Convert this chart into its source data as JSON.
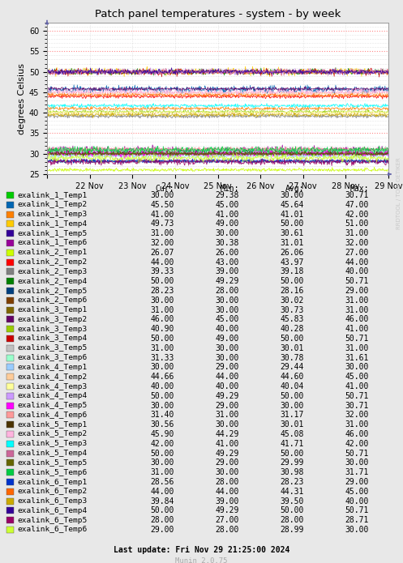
{
  "title": "Patch panel temperatures - system - by week",
  "ylabel": "degrees Celsius",
  "watermark": "RRDTOOL / TOBI OETIKER",
  "footer": "Last update: Fri Nov 29 21:25:00 2024",
  "munin_version": "Munin 2.0.75",
  "ylim": [
    25,
    62
  ],
  "yticks": [
    25,
    30,
    35,
    40,
    45,
    50,
    55,
    60
  ],
  "xstart": 0,
  "xend": 8,
  "xtick_labels": [
    "",
    "22 Nov",
    "23 Nov",
    "24 Nov",
    "25 Nov",
    "26 Nov",
    "27 Nov",
    "28 Nov",
    "29 Nov"
  ],
  "bg_color": "#e8e8e8",
  "plot_bg_color": "#ffffff",
  "series": [
    {
      "label": "exalink_1_Temp1",
      "color": "#00cc00",
      "avg": 30.0,
      "cur": 30.0,
      "min": 29.38,
      "max": 30.71
    },
    {
      "label": "exalink_1_Temp2",
      "color": "#0066b3",
      "avg": 45.64,
      "cur": 45.5,
      "min": 45.0,
      "max": 47.0
    },
    {
      "label": "exalink_1_Temp3",
      "color": "#ff8000",
      "avg": 41.01,
      "cur": 41.0,
      "min": 41.0,
      "max": 42.0
    },
    {
      "label": "exalink_1_Temp4",
      "color": "#ffcc00",
      "avg": 50.0,
      "cur": 49.73,
      "min": 49.0,
      "max": 51.0
    },
    {
      "label": "exalink_1_Temp5",
      "color": "#330099",
      "avg": 30.61,
      "cur": 31.0,
      "min": 30.0,
      "max": 31.0
    },
    {
      "label": "exalink_1_Temp6",
      "color": "#990099",
      "avg": 31.01,
      "cur": 32.0,
      "min": 30.38,
      "max": 32.0
    },
    {
      "label": "exalink_2_Temp1",
      "color": "#ccff00",
      "avg": 26.06,
      "cur": 26.07,
      "min": 26.0,
      "max": 27.0
    },
    {
      "label": "exalink_2_Temp2",
      "color": "#ff0000",
      "avg": 43.97,
      "cur": 44.0,
      "min": 43.0,
      "max": 44.0
    },
    {
      "label": "exalink_2_Temp3",
      "color": "#808080",
      "avg": 39.18,
      "cur": 39.33,
      "min": 39.0,
      "max": 40.0
    },
    {
      "label": "exalink_2_Temp4",
      "color": "#008000",
      "avg": 50.0,
      "cur": 50.0,
      "min": 49.29,
      "max": 50.71
    },
    {
      "label": "exalink_2_Temp5",
      "color": "#003f7f",
      "avg": 28.16,
      "cur": 28.23,
      "min": 28.0,
      "max": 29.0
    },
    {
      "label": "exalink_2_Temp6",
      "color": "#7f3f00",
      "avg": 30.02,
      "cur": 30.0,
      "min": 30.0,
      "max": 31.0
    },
    {
      "label": "exalink_3_Temp1",
      "color": "#7f6600",
      "avg": 30.73,
      "cur": 31.0,
      "min": 30.0,
      "max": 31.0
    },
    {
      "label": "exalink_3_Temp2",
      "color": "#660066",
      "avg": 45.83,
      "cur": 46.0,
      "min": 45.0,
      "max": 46.0
    },
    {
      "label": "exalink_3_Temp3",
      "color": "#99cc00",
      "avg": 40.28,
      "cur": 40.9,
      "min": 40.0,
      "max": 41.0
    },
    {
      "label": "exalink_3_Temp4",
      "color": "#cc0000",
      "avg": 50.0,
      "cur": 50.0,
      "min": 49.0,
      "max": 50.71
    },
    {
      "label": "exalink_3_Temp5",
      "color": "#c0c0c0",
      "avg": 30.01,
      "cur": 31.0,
      "min": 30.0,
      "max": 31.0
    },
    {
      "label": "exalink_3_Temp6",
      "color": "#99ffcc",
      "avg": 30.78,
      "cur": 31.33,
      "min": 30.0,
      "max": 31.61
    },
    {
      "label": "exalink_4_Temp1",
      "color": "#99ccff",
      "avg": 29.44,
      "cur": 30.0,
      "min": 29.0,
      "max": 30.0
    },
    {
      "label": "exalink_4_Temp2",
      "color": "#ffcc99",
      "avg": 44.6,
      "cur": 44.66,
      "min": 44.0,
      "max": 45.0
    },
    {
      "label": "exalink_4_Temp3",
      "color": "#ffff99",
      "avg": 40.04,
      "cur": 40.0,
      "min": 40.0,
      "max": 41.0
    },
    {
      "label": "exalink_4_Temp4",
      "color": "#cc99ff",
      "avg": 50.0,
      "cur": 50.0,
      "min": 49.29,
      "max": 50.71
    },
    {
      "label": "exalink_4_Temp5",
      "color": "#ff00ff",
      "avg": 30.0,
      "cur": 30.0,
      "min": 29.0,
      "max": 30.71
    },
    {
      "label": "exalink_4_Temp6",
      "color": "#ff9999",
      "avg": 31.17,
      "cur": 31.4,
      "min": 31.0,
      "max": 32.0
    },
    {
      "label": "exalink_5_Temp1",
      "color": "#4c3300",
      "avg": 30.01,
      "cur": 30.56,
      "min": 30.0,
      "max": 31.0
    },
    {
      "label": "exalink_5_Temp2",
      "color": "#ffb3de",
      "avg": 45.08,
      "cur": 45.9,
      "min": 44.29,
      "max": 46.0
    },
    {
      "label": "exalink_5_Temp3",
      "color": "#00ffff",
      "avg": 41.71,
      "cur": 42.0,
      "min": 41.0,
      "max": 42.0
    },
    {
      "label": "exalink_5_Temp4",
      "color": "#cc6699",
      "avg": 50.0,
      "cur": 50.0,
      "min": 49.29,
      "max": 50.71
    },
    {
      "label": "exalink_5_Temp5",
      "color": "#666600",
      "avg": 29.99,
      "cur": 30.0,
      "min": 29.0,
      "max": 30.0
    },
    {
      "label": "exalink_5_Temp6",
      "color": "#00cc44",
      "avg": 30.98,
      "cur": 31.0,
      "min": 30.0,
      "max": 31.71
    },
    {
      "label": "exalink_6_Temp1",
      "color": "#0033cc",
      "avg": 28.23,
      "cur": 28.56,
      "min": 28.0,
      "max": 29.0
    },
    {
      "label": "exalink_6_Temp2",
      "color": "#ff6600",
      "avg": 44.31,
      "cur": 44.0,
      "min": 44.0,
      "max": 45.0
    },
    {
      "label": "exalink_6_Temp3",
      "color": "#ccaa00",
      "avg": 39.5,
      "cur": 39.84,
      "min": 39.0,
      "max": 40.0
    },
    {
      "label": "exalink_6_Temp4",
      "color": "#330099",
      "avg": 50.0,
      "cur": 50.0,
      "min": 49.29,
      "max": 50.71
    },
    {
      "label": "exalink_6_Temp5",
      "color": "#990066",
      "avg": 28.0,
      "cur": 28.0,
      "min": 27.0,
      "max": 28.71
    },
    {
      "label": "exalink_6_Temp6",
      "color": "#ccff33",
      "avg": 28.99,
      "cur": 29.0,
      "min": 28.0,
      "max": 30.0
    }
  ]
}
